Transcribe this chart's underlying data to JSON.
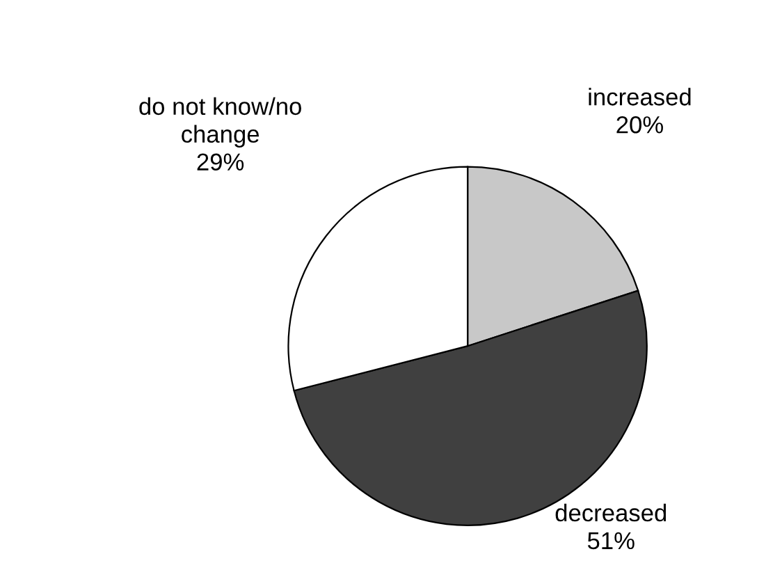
{
  "chart_data": {
    "type": "pie",
    "categories": [
      "increased",
      "decreased",
      "do not know/no change"
    ],
    "values": [
      20,
      51,
      29
    ],
    "colors": [
      "#c8c8c8",
      "#404040",
      "#ffffff"
    ],
    "value_labels": [
      "20%",
      "51%",
      "29%"
    ],
    "legend": false
  }
}
